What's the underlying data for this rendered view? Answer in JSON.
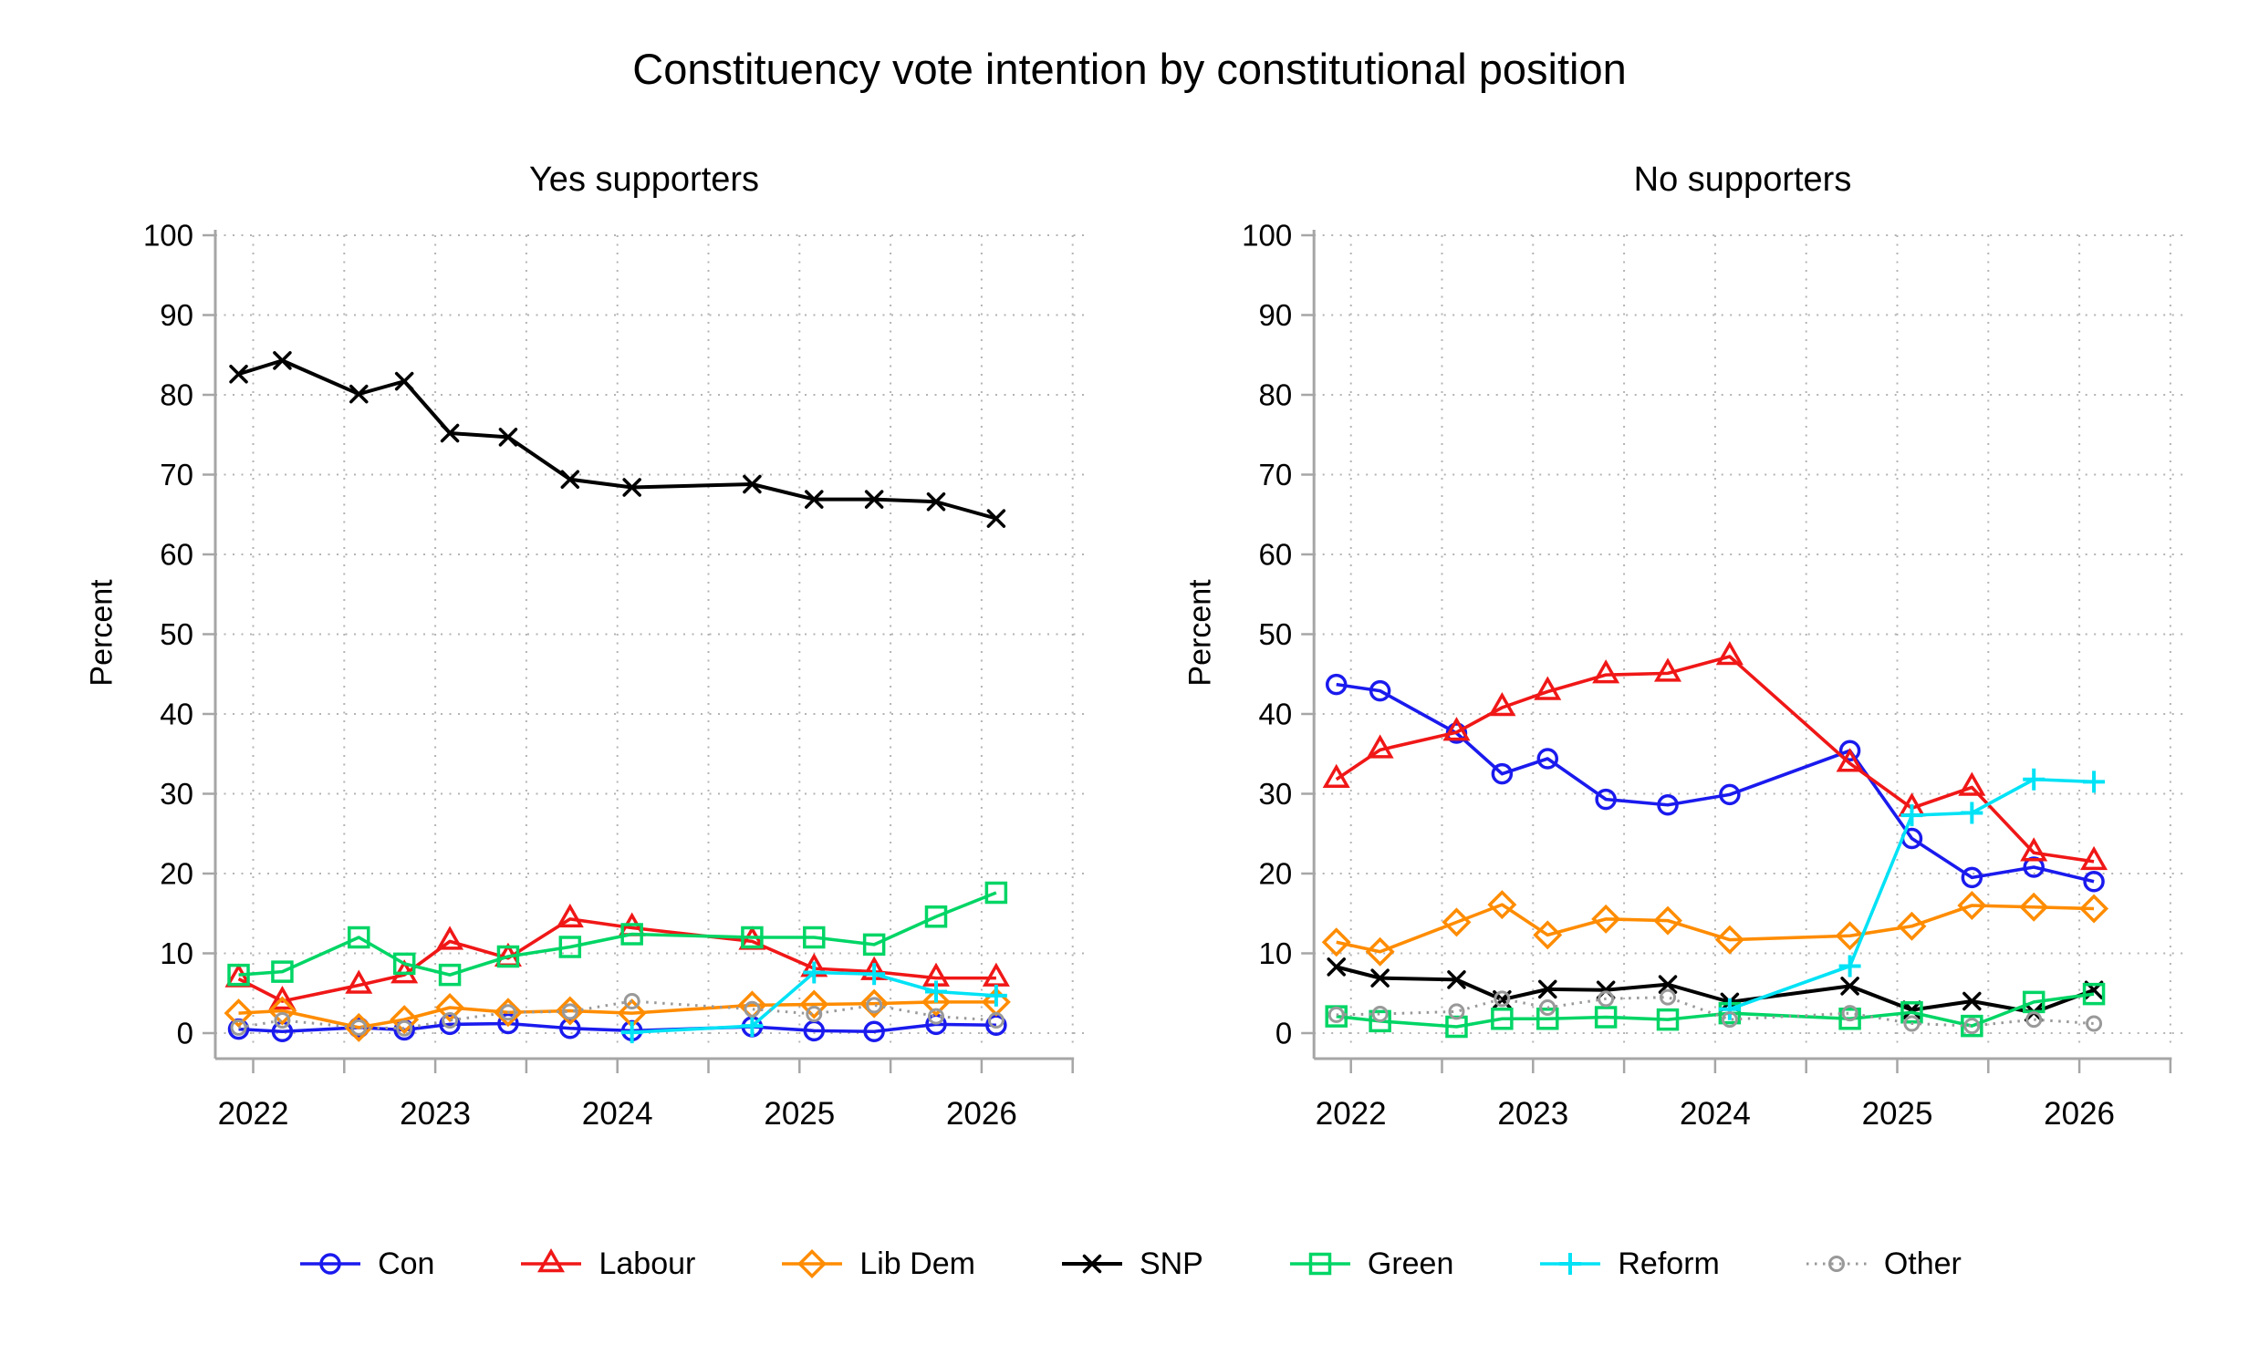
{
  "title": "Constituency vote intention by constitutional position",
  "ylabel": "Percent",
  "layout": {
    "grid_color": "#b3b3b3",
    "axis_color": "#a6a6a6",
    "text_color": "#000000",
    "background": "#ffffff"
  },
  "legend": {
    "items": [
      {
        "label": "Con",
        "color": "#1a1aee",
        "marker": "circle"
      },
      {
        "label": "Labour",
        "color": "#f01717",
        "marker": "triangle"
      },
      {
        "label": "Lib Dem",
        "color": "#ff8c00",
        "marker": "diamond"
      },
      {
        "label": "SNP",
        "color": "#000000",
        "marker": "x"
      },
      {
        "label": "Green",
        "color": "#00d565",
        "marker": "square"
      },
      {
        "label": "Reform",
        "color": "#00e2f5",
        "marker": "plus"
      },
      {
        "label": "Other",
        "color": "#999999",
        "marker": "smallcircle",
        "line_style": "dotted"
      }
    ]
  },
  "chart_data": [
    {
      "type": "line",
      "title": "Yes supporters",
      "ylabel": "Percent",
      "ylim": [
        0,
        100
      ],
      "yticks": [
        0,
        10,
        20,
        30,
        40,
        50,
        60,
        70,
        80,
        90,
        100
      ],
      "xtick_labels": [
        "2022",
        "2023",
        "2024",
        "2025",
        "2026"
      ],
      "xlim": [
        2021.79,
        2026.5
      ],
      "grid": true,
      "x": [
        2021.92,
        2022.16,
        2022.58,
        2022.83,
        2023.08,
        2023.4,
        2023.74,
        2024.08,
        2024.74,
        2025.08,
        2025.41,
        2025.75,
        2026.08
      ],
      "series": [
        {
          "name": "Con",
          "color": "#1a1aee",
          "marker": "circle",
          "values": [
            0.5,
            0.2,
            0.7,
            0.4,
            1.1,
            1.2,
            0.6,
            0.3,
            0.8,
            0.3,
            0.2,
            1.1,
            1.0
          ]
        },
        {
          "name": "Labour",
          "color": "#f01717",
          "marker": "triangle",
          "values": [
            6.8,
            4.0,
            6.0,
            7.3,
            11.5,
            9.4,
            14.3,
            13.2,
            11.5,
            8.1,
            7.7,
            6.9,
            6.9
          ]
        },
        {
          "name": "Lib Dem",
          "color": "#ff8c00",
          "marker": "diamond",
          "values": [
            2.5,
            2.8,
            0.7,
            1.7,
            3.2,
            2.6,
            2.8,
            2.5,
            3.5,
            3.6,
            3.7,
            3.9,
            3.9
          ]
        },
        {
          "name": "SNP",
          "color": "#000000",
          "marker": "x",
          "values": [
            82.6,
            84.3,
            80.1,
            81.7,
            75.2,
            74.7,
            69.4,
            68.4,
            68.8,
            66.9,
            66.9,
            66.6,
            64.5
          ]
        },
        {
          "name": "Green",
          "color": "#00d565",
          "marker": "square",
          "values": [
            7.3,
            7.7,
            12.0,
            8.7,
            7.3,
            9.6,
            10.8,
            12.4,
            12.0,
            12.0,
            11.1,
            14.6,
            17.6
          ]
        },
        {
          "name": "Reform",
          "color": "#00e2f5",
          "marker": "plus",
          "values": [
            null,
            null,
            null,
            null,
            null,
            null,
            null,
            0.1,
            0.9,
            7.6,
            7.4,
            5.2,
            4.7
          ]
        },
        {
          "name": "Other",
          "color": "#999999",
          "marker": "smallcircle",
          "values": [
            0.7,
            1.6,
            0.7,
            0.6,
            1.6,
            2.6,
            2.7,
            4.0,
            3.0,
            2.4,
            3.5,
            2.1,
            1.6
          ],
          "line_style": "dotted"
        }
      ]
    },
    {
      "type": "line",
      "title": "No supporters",
      "ylabel": "Percent",
      "ylim": [
        0,
        100
      ],
      "yticks": [
        0,
        10,
        20,
        30,
        40,
        50,
        60,
        70,
        80,
        90,
        100
      ],
      "xtick_labels": [
        "2022",
        "2023",
        "2024",
        "2025",
        "2026"
      ],
      "xlim": [
        2021.79,
        2026.5
      ],
      "grid": true,
      "x": [
        2021.92,
        2022.16,
        2022.58,
        2022.83,
        2023.08,
        2023.4,
        2023.74,
        2024.08,
        2024.74,
        2025.08,
        2025.41,
        2025.75,
        2026.08
      ],
      "series": [
        {
          "name": "Con",
          "color": "#1a1aee",
          "marker": "circle",
          "values": [
            43.7,
            42.9,
            37.6,
            32.5,
            34.4,
            29.3,
            28.6,
            29.9,
            35.4,
            24.4,
            19.5,
            20.8,
            19.0
          ]
        },
        {
          "name": "Labour",
          "color": "#f01717",
          "marker": "triangle",
          "values": [
            31.8,
            35.5,
            37.7,
            40.8,
            42.8,
            44.9,
            45.1,
            47.2,
            33.8,
            28.2,
            30.8,
            22.6,
            21.5
          ]
        },
        {
          "name": "Lib Dem",
          "color": "#ff8c00",
          "marker": "diamond",
          "values": [
            11.4,
            10.2,
            13.9,
            16.1,
            12.3,
            14.3,
            14.1,
            11.7,
            12.2,
            13.4,
            16.0,
            15.8,
            15.6
          ]
        },
        {
          "name": "SNP",
          "color": "#000000",
          "marker": "x",
          "values": [
            8.3,
            6.9,
            6.7,
            4.2,
            5.5,
            5.4,
            6.1,
            3.9,
            5.9,
            2.9,
            4.0,
            2.6,
            5.4
          ]
        },
        {
          "name": "Green",
          "color": "#00d565",
          "marker": "square",
          "values": [
            2.1,
            1.5,
            0.8,
            1.8,
            1.8,
            2.0,
            1.7,
            2.5,
            1.8,
            2.6,
            0.9,
            3.9,
            4.9
          ]
        },
        {
          "name": "Reform",
          "color": "#00e2f5",
          "marker": "plus",
          "values": [
            null,
            null,
            null,
            null,
            null,
            null,
            null,
            3.0,
            8.4,
            27.3,
            27.6,
            31.8,
            31.5
          ]
        },
        {
          "name": "Other",
          "color": "#999999",
          "marker": "smallcircle",
          "values": [
            2.3,
            2.4,
            2.7,
            4.3,
            3.2,
            4.3,
            4.5,
            1.7,
            2.5,
            1.2,
            0.9,
            1.7,
            1.2
          ],
          "line_style": "dotted"
        }
      ]
    }
  ]
}
